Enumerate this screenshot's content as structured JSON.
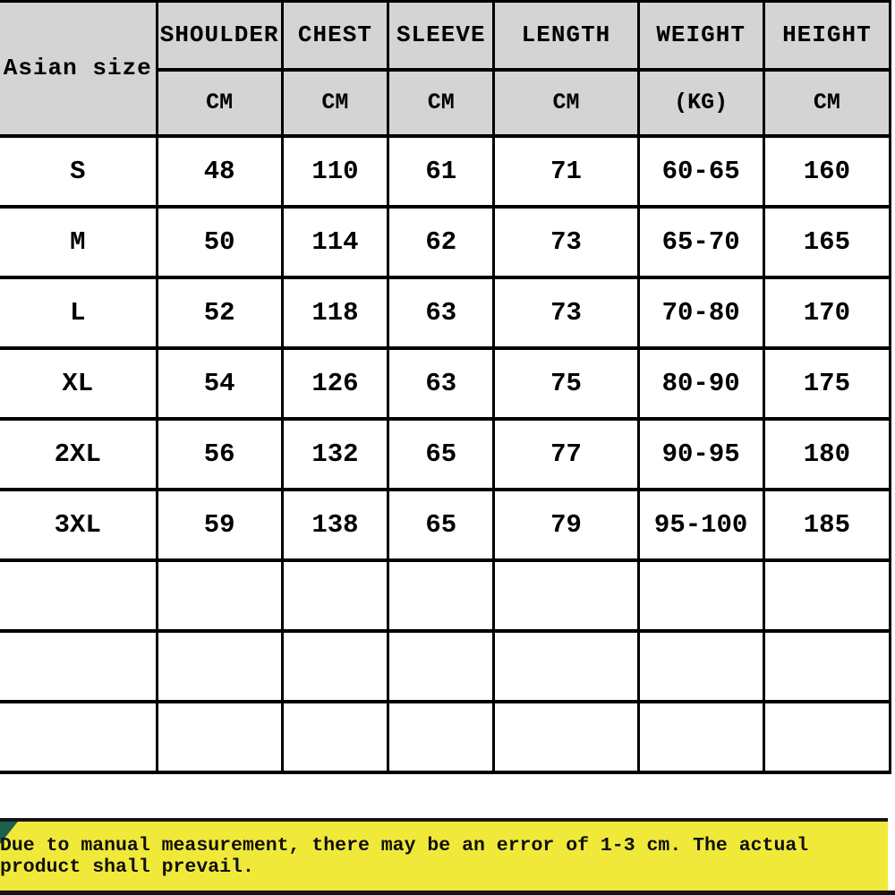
{
  "table": {
    "corner_label": "Asian size",
    "columns": [
      {
        "label": "SHOULDER",
        "unit": "CM"
      },
      {
        "label": "CHEST",
        "unit": "CM"
      },
      {
        "label": "SLEEVE",
        "unit": "CM"
      },
      {
        "label": "LENGTH",
        "unit": "CM"
      },
      {
        "label": "WEIGHT",
        "unit": "(KG)"
      },
      {
        "label": "HEIGHT",
        "unit": "CM"
      }
    ],
    "rows": [
      {
        "size": "S",
        "values": [
          "48",
          "110",
          "61",
          "71",
          "60-65",
          "160"
        ]
      },
      {
        "size": "M",
        "values": [
          "50",
          "114",
          "62",
          "73",
          "65-70",
          "165"
        ]
      },
      {
        "size": "L",
        "values": [
          "52",
          "118",
          "63",
          "73",
          "70-80",
          "170"
        ]
      },
      {
        "size": "XL",
        "values": [
          "54",
          "126",
          "63",
          "75",
          "80-90",
          "175"
        ]
      },
      {
        "size": "2XL",
        "values": [
          "56",
          "132",
          "65",
          "77",
          "90-95",
          "180"
        ]
      },
      {
        "size": "3XL",
        "values": [
          "59",
          "138",
          "65",
          "79",
          "95-100",
          "185"
        ]
      }
    ],
    "empty_row_count": 3
  },
  "footer": {
    "note": "Due to manual measurement, there may be an error of 1-3 cm. The actual product shall prevail."
  },
  "colors": {
    "header_bg": "#d4d4d4",
    "grid_line": "#000000",
    "banner_yellow": "#f0e93a",
    "banner_accent": "#1e5f4d",
    "banner_border": "#141414"
  }
}
